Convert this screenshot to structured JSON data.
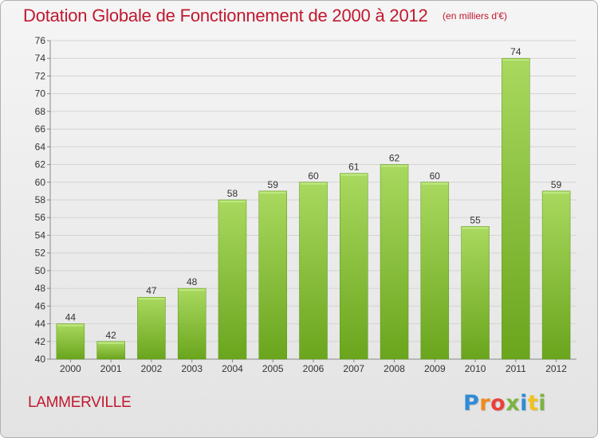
{
  "title": "Dotation Globale de Fonctionnement de 2000 à 2012",
  "subtitle": "(en milliers d'€)",
  "commune": "LAMMERVILLE",
  "logo": {
    "text": "Proxiti",
    "colors": [
      "#2e8bd6",
      "#f08a1d",
      "#e8423b",
      "#7cb342",
      "#2e8bd6",
      "#f2c21b",
      "#7cb342"
    ]
  },
  "colors": {
    "bar_light": "#a9d95f",
    "bar_dark": "#6aa51d",
    "title": "#c0182f",
    "grid": "#d4d4d4"
  },
  "chart_data": {
    "type": "bar",
    "categories": [
      "2000",
      "2001",
      "2002",
      "2003",
      "2004",
      "2005",
      "2006",
      "2007",
      "2008",
      "2009",
      "2010",
      "2011",
      "2012"
    ],
    "values": [
      44,
      42,
      47,
      48,
      58,
      59,
      60,
      61,
      62,
      60,
      55,
      74,
      59
    ],
    "title": "Dotation Globale de Fonctionnement de 2000 à 2012",
    "subtitle": "(en milliers d'€)",
    "ylim": [
      40,
      76
    ],
    "yticks": [
      40,
      42,
      44,
      46,
      48,
      50,
      52,
      54,
      56,
      58,
      60,
      62,
      64,
      66,
      68,
      70,
      72,
      74,
      76
    ],
    "grid": true,
    "data_labels": true
  }
}
